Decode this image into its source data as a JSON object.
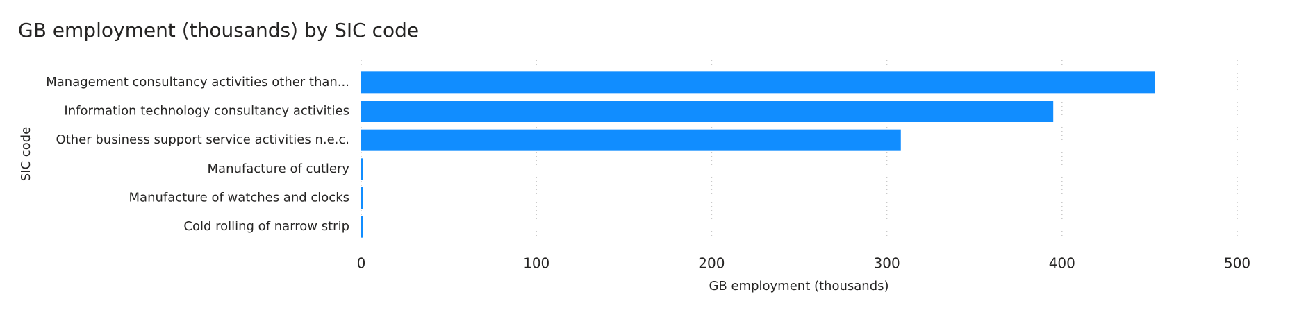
{
  "chart_data": {
    "type": "bar",
    "orientation": "horizontal",
    "title": "GB employment (thousands) by SIC code",
    "x_label": "GB employment (thousands)",
    "y_label": "SIC code",
    "categories": [
      "Management consultancy activities other than...",
      "Information technology consultancy activities",
      "Other business support service activities n.e.c.",
      "Manufacture of cutlery",
      "Manufacture of watches and clocks",
      "Cold rolling of narrow strip"
    ],
    "values": [
      453,
      395,
      308,
      1,
      1,
      1
    ],
    "color": "#118DFF",
    "xlim": [
      0,
      500
    ],
    "xticks": [
      0,
      100,
      200,
      300,
      400,
      500
    ],
    "grid": true
  }
}
